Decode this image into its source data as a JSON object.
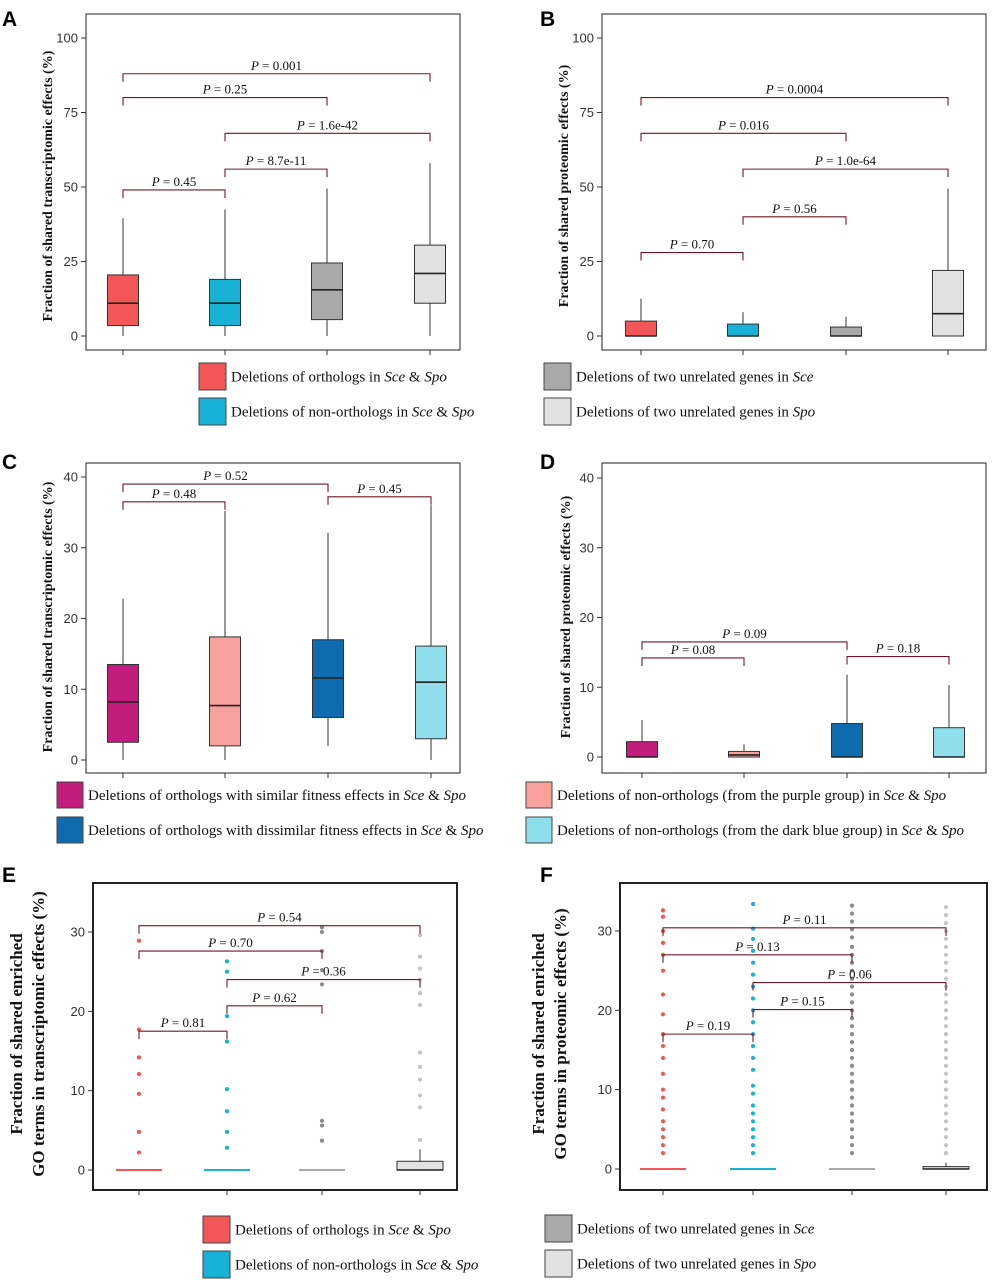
{
  "figure": {
    "colors": {
      "red": "#f25656",
      "cyan": "#18b2d6",
      "gray": "#a9a9a9",
      "lightgray": "#e2e2e2",
      "purple": "#c21d7d",
      "pink": "#f7a09c",
      "darkblue": "#0e6cae",
      "lightblue": "#8edfeb",
      "bracket": "#6b1a2a"
    },
    "legend_top": [
      {
        "color": "#f25656",
        "prefix": "Deletions of orthologs in ",
        "italic": "Sce",
        "mid": " & ",
        "italic2": "Spo",
        "suffix": ""
      },
      {
        "color": "#18b2d6",
        "prefix": "Deletions of non-orthologs in ",
        "italic": "Sce",
        "mid": " & ",
        "italic2": "Spo",
        "suffix": ""
      },
      {
        "color": "#a9a9a9",
        "prefix": "Deletions of two unrelated genes in ",
        "italic": "Sce",
        "mid": "",
        "italic2": "",
        "suffix": ""
      },
      {
        "color": "#e2e2e2",
        "prefix": "Deletions of two unrelated genes in ",
        "italic": "Spo",
        "mid": "",
        "italic2": "",
        "suffix": ""
      }
    ],
    "legend_mid": [
      {
        "color": "#c21d7d",
        "prefix": "Deletions of orthologs with similar fitness effects in ",
        "italic": "Sce",
        "mid": " & ",
        "italic2": "Spo",
        "suffix": ""
      },
      {
        "color": "#0e6cae",
        "prefix": "Deletions of orthologs with dissimilar fitness effects in ",
        "italic": "Sce",
        "mid": " & ",
        "italic2": "Spo",
        "suffix": ""
      },
      {
        "color": "#f7a09c",
        "prefix": "Deletions of non-orthologs (from the purple group) in ",
        "italic": "Sce",
        "mid": " & ",
        "italic2": "Spo",
        "suffix": ""
      },
      {
        "color": "#8edfeb",
        "prefix": "Deletions of non-orthologs (from the dark blue group) in ",
        "italic": "Sce",
        "mid": " & ",
        "italic2": "Spo",
        "suffix": ""
      }
    ],
    "legend_bottom": [
      {
        "color": "#f25656",
        "prefix": "Deletions of orthologs in ",
        "italic": "Sce",
        "mid": " & ",
        "italic2": "Spo",
        "suffix": ""
      },
      {
        "color": "#18b2d6",
        "prefix": "Deletions of non-orthologs in ",
        "italic": "Sce",
        "mid": " & ",
        "italic2": "Spo",
        "suffix": ""
      },
      {
        "color": "#a9a9a9",
        "prefix": "Deletions of two unrelated genes in ",
        "italic": "Sce",
        "mid": "",
        "italic2": "",
        "suffix": ""
      },
      {
        "color": "#e2e2e2",
        "prefix": "Deletions of two unrelated genes in ",
        "italic": "Spo",
        "mid": "",
        "italic2": "",
        "suffix": ""
      }
    ]
  },
  "chart_data": [
    {
      "panel": "A",
      "type": "box",
      "ylabel": "Fraction of shared transcriptomic effects (%)",
      "ylim": [
        0,
        100
      ],
      "yticks": [
        0,
        25,
        50,
        75,
        100
      ],
      "boxes": [
        {
          "color": "#f25656",
          "whisker_low": 0,
          "q1": 3.5,
          "median": 11,
          "q3": 20.5,
          "whisker_high": 39.5
        },
        {
          "color": "#18b2d6",
          "whisker_low": 0,
          "q1": 3.5,
          "median": 11,
          "q3": 19,
          "whisker_high": 42.5
        },
        {
          "color": "#a9a9a9",
          "whisker_low": 0,
          "q1": 5.5,
          "median": 15.5,
          "q3": 24.5,
          "whisker_high": 49.5
        },
        {
          "color": "#e2e2e2",
          "whisker_low": 0,
          "q1": 11,
          "median": 21,
          "q3": 30.5,
          "whisker_high": 58
        }
      ],
      "comparisons": [
        {
          "from": 1,
          "to": 4,
          "y": 88,
          "label": "= 0.001"
        },
        {
          "from": 1,
          "to": 3,
          "y": 80,
          "label": "= 0.25"
        },
        {
          "from": 2,
          "to": 4,
          "y": 68,
          "label": "= 1.6e-42"
        },
        {
          "from": 1,
          "to": 2,
          "y": 49,
          "label": "= 0.45"
        },
        {
          "from": 2,
          "to": 3,
          "y": 56,
          "label": "= 8.7e-11"
        }
      ]
    },
    {
      "panel": "B",
      "type": "box",
      "ylabel": "Fraction of shared proteomic effects (%)",
      "ylim": [
        0,
        100
      ],
      "yticks": [
        0,
        25,
        50,
        75,
        100
      ],
      "boxes": [
        {
          "color": "#f25656",
          "whisker_low": 0,
          "q1": 0,
          "median": 0,
          "q3": 5,
          "whisker_high": 12.5
        },
        {
          "color": "#18b2d6",
          "whisker_low": 0,
          "q1": 0,
          "median": 0,
          "q3": 4,
          "whisker_high": 8
        },
        {
          "color": "#a9a9a9",
          "whisker_low": 0,
          "q1": 0,
          "median": 0,
          "q3": 3,
          "whisker_high": 6.5
        },
        {
          "color": "#e2e2e2",
          "whisker_low": 0,
          "q1": 0,
          "median": 7.5,
          "q3": 22,
          "whisker_high": 49.5
        }
      ],
      "comparisons": [
        {
          "from": 1,
          "to": 4,
          "y": 80,
          "label": "= 0.0004"
        },
        {
          "from": 1,
          "to": 3,
          "y": 68,
          "label": "= 0.016"
        },
        {
          "from": 2,
          "to": 4,
          "y": 56,
          "label": "= 1.0e-64"
        },
        {
          "from": 2,
          "to": 3,
          "y": 40,
          "label": "= 0.56"
        },
        {
          "from": 1,
          "to": 2,
          "y": 28,
          "label": "= 0.70"
        }
      ]
    },
    {
      "panel": "C",
      "type": "box",
      "ylabel": "Fraction of shared transcriptomic effects (%)",
      "ylim": [
        -2,
        42
      ],
      "yticks": [
        0,
        10,
        20,
        30,
        40
      ],
      "boxes": [
        {
          "color": "#c21d7d",
          "whisker_low": 0,
          "q1": 2.5,
          "median": 8.2,
          "q3": 13.5,
          "whisker_high": 22.8
        },
        {
          "color": "#f7a09c",
          "whisker_low": 0,
          "q1": 2,
          "median": 7.7,
          "q3": 17.4,
          "whisker_high": 35.2
        },
        {
          "color": "#0e6cae",
          "whisker_low": 2,
          "q1": 6,
          "median": 11.6,
          "q3": 17,
          "whisker_high": 32.1
        },
        {
          "color": "#8edfeb",
          "whisker_low": 0,
          "q1": 3,
          "median": 11,
          "q3": 16.1,
          "whisker_high": 36
        }
      ],
      "comparisons": [
        {
          "from": 1,
          "to": 3,
          "y": 39,
          "label": "= 0.52"
        },
        {
          "from": 1,
          "to": 2,
          "y": 36.5,
          "label": "= 0.48"
        },
        {
          "from": 3,
          "to": 4,
          "y": 37.2,
          "label": "= 0.45"
        }
      ]
    },
    {
      "panel": "D",
      "type": "box",
      "ylabel": "Fraction of shared proteomic effects (%)",
      "ylim": [
        -2,
        42
      ],
      "yticks": [
        0,
        10,
        20,
        30,
        40
      ],
      "boxes": [
        {
          "color": "#c21d7d",
          "whisker_low": 0,
          "q1": 0,
          "median": 0,
          "q3": 2.2,
          "whisker_high": 5.3
        },
        {
          "color": "#f7a09c",
          "whisker_low": 0,
          "q1": 0,
          "median": 0.3,
          "q3": 0.8,
          "whisker_high": 1.8
        },
        {
          "color": "#0e6cae",
          "whisker_low": 0,
          "q1": 0,
          "median": 0,
          "q3": 4.8,
          "whisker_high": 11.8
        },
        {
          "color": "#8edfeb",
          "whisker_low": 0,
          "q1": 0,
          "median": 0,
          "q3": 4.2,
          "whisker_high": 10.3
        }
      ],
      "comparisons": [
        {
          "from": 1,
          "to": 3,
          "y": 16.5,
          "label": "= 0.09"
        },
        {
          "from": 1,
          "to": 2,
          "y": 14.2,
          "label": "= 0.08"
        },
        {
          "from": 3,
          "to": 4,
          "y": 14.4,
          "label": "= 0.18"
        }
      ]
    },
    {
      "panel": "E",
      "type": "box",
      "ylabel_line1": "Fraction of shared enriched",
      "ylabel_line2": "GO terms in transcriptomic effects (%)",
      "ylim": [
        -2.5,
        36.5
      ],
      "yticks": [
        0,
        10,
        20,
        30
      ],
      "boxes": [
        {
          "color": "#f25656",
          "whisker_low": 0,
          "q1": 0,
          "median": 0,
          "q3": 0,
          "whisker_high": 0,
          "outliers": [
            2.2,
            4.8,
            9.6,
            12.1,
            14.2,
            17.7,
            28.9
          ]
        },
        {
          "color": "#18b2d6",
          "whisker_low": 0,
          "q1": 0,
          "median": 0,
          "q3": 0,
          "whisker_high": 0,
          "outliers": [
            2.8,
            4.8,
            7.4,
            10.2,
            16.2,
            19.4,
            25,
            26.3
          ]
        },
        {
          "color": "#a9a9a9",
          "whisker_low": 0,
          "q1": 0,
          "median": 0,
          "q3": 0,
          "whisker_high": 0,
          "outliers": [
            3.7,
            5.6,
            6.2,
            23.4,
            25.2,
            27.6,
            30,
            30.6
          ]
        },
        {
          "color": "#e2e2e2",
          "whisker_low": 0,
          "q1": 0,
          "median": 0,
          "q3": 1.1,
          "whisker_high": 2.6,
          "outliers": [
            3.8,
            7.9,
            9.4,
            11.4,
            13,
            14.8,
            20.8,
            22.3,
            24,
            25.4,
            26.9,
            29.6
          ]
        }
      ],
      "comparisons": [
        {
          "from": 1,
          "to": 4,
          "y": 30.8,
          "label": "= 0.54"
        },
        {
          "from": 1,
          "to": 3,
          "y": 27.6,
          "label": "= 0.70"
        },
        {
          "from": 2,
          "to": 4,
          "y": 24,
          "label": "= 0.36"
        },
        {
          "from": 2,
          "to": 3,
          "y": 20.7,
          "label": "= 0.62"
        },
        {
          "from": 1,
          "to": 2,
          "y": 17.5,
          "label": "= 0.81"
        }
      ]
    },
    {
      "panel": "F",
      "type": "box",
      "ylabel_line1": "Fraction of shared enriched",
      "ylabel_line2": "GO terms in proteomic effects (%)",
      "ylim": [
        -2,
        35.5
      ],
      "yticks": [
        0,
        10,
        20,
        30
      ],
      "boxes": [
        {
          "color": "#f25656",
          "whisker_low": 0,
          "q1": 0,
          "median": 0,
          "q3": 0,
          "whisker_high": 0,
          "outliers": [
            2,
            3,
            4,
            5,
            6,
            7.5,
            9,
            10,
            12,
            14,
            15.5,
            17,
            19.5,
            22,
            25,
            27,
            28.5,
            30,
            31.8,
            32.6
          ]
        },
        {
          "color": "#18b2d6",
          "whisker_low": 0,
          "q1": 0,
          "median": 0,
          "q3": 0,
          "whisker_high": 0,
          "outliers": [
            2,
            3,
            4,
            5,
            6,
            7,
            8,
            9.5,
            10.5,
            12.5,
            14,
            15.5,
            17,
            18.5,
            20,
            21.5,
            23,
            24.5,
            26,
            27.5,
            29,
            30.3,
            33.4
          ]
        },
        {
          "color": "#a9a9a9",
          "whisker_low": 0,
          "q1": 0,
          "median": 0,
          "q3": 0,
          "whisker_high": 0,
          "outliers": [
            2,
            3,
            4,
            5,
            6,
            7,
            8,
            9,
            10,
            11,
            12,
            13,
            14,
            15,
            16,
            17,
            18,
            19,
            20,
            21,
            22,
            23,
            24,
            25,
            26,
            27,
            28,
            29.2,
            30.2,
            31.2,
            32.2,
            33.2
          ]
        },
        {
          "color": "#e2e2e2",
          "whisker_low": 0,
          "q1": 0,
          "median": 0,
          "q3": 0.3,
          "whisker_high": 0.8,
          "outliers": [
            2,
            3,
            4,
            5,
            6,
            7,
            8,
            9,
            10,
            11,
            12,
            13,
            14,
            15,
            16,
            17,
            18,
            19,
            20,
            21,
            22,
            23,
            24,
            25,
            26,
            27,
            28,
            29,
            30,
            31,
            32,
            33
          ]
        }
      ],
      "comparisons": [
        {
          "from": 1,
          "to": 4,
          "y": 30.4,
          "label": "= 0.11"
        },
        {
          "from": 1,
          "to": 3,
          "y": 27,
          "label": "= 0.13"
        },
        {
          "from": 2,
          "to": 4,
          "y": 23.5,
          "label": "= 0.06"
        },
        {
          "from": 2,
          "to": 3,
          "y": 20.1,
          "label": "= 0.15"
        },
        {
          "from": 1,
          "to": 2,
          "y": 17,
          "label": "= 0.19"
        }
      ]
    }
  ]
}
